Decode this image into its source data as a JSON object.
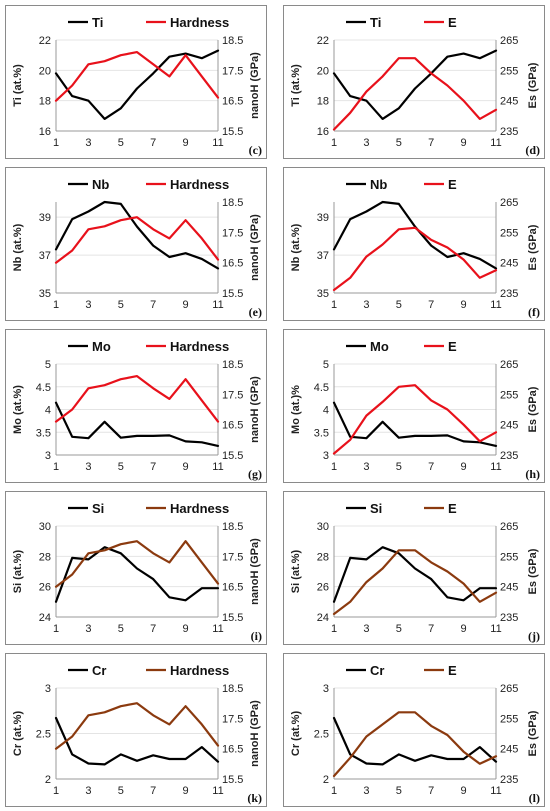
{
  "chart_data": [
    {
      "type": "line",
      "letter": "(c)",
      "xlabel": "",
      "ylabel": "Ti (at.%)",
      "y2label": "nanoH (GPa)",
      "x": [
        1,
        2,
        3,
        4,
        5,
        6,
        7,
        8,
        9,
        10,
        11
      ],
      "xticks": [
        "1",
        "3",
        "5",
        "7",
        "9",
        "11"
      ],
      "ylim": [
        16,
        22
      ],
      "yticks": [
        "16",
        "18",
        "20",
        "22"
      ],
      "y2lim": [
        15.5,
        18.5
      ],
      "y2ticks": [
        "15.5",
        "16.5",
        "17.5",
        "18.5"
      ],
      "series": [
        {
          "name": "Ti",
          "axis": "left",
          "color": "#000000",
          "values": [
            19.8,
            18.3,
            18.0,
            16.8,
            17.5,
            18.8,
            19.8,
            20.9,
            21.1,
            20.8,
            21.3
          ]
        },
        {
          "name": "Hardness",
          "axis": "right",
          "color": "#e8111b",
          "values": [
            16.5,
            17.0,
            17.7,
            17.8,
            18.0,
            18.1,
            17.7,
            17.3,
            18.0,
            17.3,
            16.6
          ]
        }
      ]
    },
    {
      "type": "line",
      "letter": "(d)",
      "xlabel": "",
      "ylabel": "Ti (at.%)",
      "y2label": "Es (GPa)",
      "x": [
        1,
        2,
        3,
        4,
        5,
        6,
        7,
        8,
        9,
        10,
        11
      ],
      "xticks": [
        "1",
        "3",
        "5",
        "7",
        "9",
        "11"
      ],
      "ylim": [
        16,
        22
      ],
      "yticks": [
        "16",
        "18",
        "20",
        "22"
      ],
      "y2lim": [
        235,
        265
      ],
      "y2ticks": [
        "235",
        "245",
        "255",
        "265"
      ],
      "series": [
        {
          "name": "Ti",
          "axis": "left",
          "color": "#000000",
          "values": [
            19.8,
            18.3,
            18.0,
            16.8,
            17.5,
            18.8,
            19.8,
            20.9,
            21.1,
            20.8,
            21.3
          ]
        },
        {
          "name": "E",
          "axis": "right",
          "color": "#e8111b",
          "values": [
            235.5,
            241,
            248,
            253,
            259,
            259,
            254,
            250,
            245,
            239,
            242
          ]
        }
      ]
    },
    {
      "type": "line",
      "letter": "(e)",
      "xlabel": "",
      "ylabel": "Nb (at.%)",
      "y2label": "nanoH (GPa)",
      "x": [
        1,
        2,
        3,
        4,
        5,
        6,
        7,
        8,
        9,
        10,
        11
      ],
      "xticks": [
        "1",
        "3",
        "5",
        "7",
        "9",
        "11"
      ],
      "ylim": [
        35,
        39.8
      ],
      "yticks": [
        "35",
        "37",
        "39"
      ],
      "y2lim": [
        15.5,
        18.5
      ],
      "y2ticks": [
        "15.5",
        "16.5",
        "17.5",
        "18.5"
      ],
      "series": [
        {
          "name": "Nb",
          "axis": "left",
          "color": "#000000",
          "values": [
            37.3,
            38.9,
            39.3,
            39.8,
            39.7,
            38.5,
            37.5,
            36.9,
            37.1,
            36.8,
            36.3
          ]
        },
        {
          "name": "Hardness",
          "axis": "right",
          "color": "#e8111b",
          "values": [
            16.5,
            16.9,
            17.6,
            17.7,
            17.9,
            18.0,
            17.6,
            17.3,
            17.9,
            17.3,
            16.6
          ]
        }
      ]
    },
    {
      "type": "line",
      "letter": "(f)",
      "xlabel": "",
      "ylabel": "Nb (at.%)",
      "y2label": "Es (GPa)",
      "x": [
        1,
        2,
        3,
        4,
        5,
        6,
        7,
        8,
        9,
        10,
        11
      ],
      "xticks": [
        "1",
        "3",
        "5",
        "7",
        "9",
        "11"
      ],
      "ylim": [
        35,
        39.8
      ],
      "yticks": [
        "35",
        "37",
        "39"
      ],
      "y2lim": [
        235,
        265
      ],
      "y2ticks": [
        "235",
        "245",
        "255",
        "265"
      ],
      "series": [
        {
          "name": "Nb",
          "axis": "left",
          "color": "#000000",
          "values": [
            37.3,
            38.9,
            39.3,
            39.8,
            39.7,
            38.5,
            37.5,
            36.9,
            37.1,
            36.8,
            36.3
          ]
        },
        {
          "name": "E",
          "axis": "right",
          "color": "#e8111b",
          "values": [
            236,
            240,
            247,
            251,
            256,
            256.5,
            252.5,
            250,
            246,
            240,
            242.5
          ]
        }
      ]
    },
    {
      "type": "line",
      "letter": "(g)",
      "xlabel": "",
      "ylabel": "Mo (at.%)",
      "y2label": "nanoH (GPa)",
      "x": [
        1,
        2,
        3,
        4,
        5,
        6,
        7,
        8,
        9,
        10,
        11
      ],
      "xticks": [
        "1",
        "3",
        "5",
        "7",
        "9",
        "11"
      ],
      "ylim": [
        3,
        5
      ],
      "yticks": [
        "3",
        "3.5",
        "4",
        "4.5",
        "5"
      ],
      "y2lim": [
        15.5,
        18.5
      ],
      "y2ticks": [
        "15.5",
        "16.5",
        "17.5",
        "18.5"
      ],
      "series": [
        {
          "name": "Mo",
          "axis": "left",
          "color": "#000000",
          "values": [
            4.15,
            3.4,
            3.37,
            3.73,
            3.38,
            3.42,
            3.42,
            3.43,
            3.3,
            3.28,
            3.2
          ]
        },
        {
          "name": "Hardness",
          "axis": "right",
          "color": "#e8111b",
          "values": [
            16.6,
            17.0,
            17.7,
            17.8,
            18.0,
            18.1,
            17.7,
            17.35,
            18.0,
            17.3,
            16.6
          ]
        }
      ]
    },
    {
      "type": "line",
      "letter": "(h)",
      "xlabel": "",
      "ylabel": "Mo (at.)%",
      "y2label": "Es (GPa)",
      "x": [
        1,
        2,
        3,
        4,
        5,
        6,
        7,
        8,
        9,
        10,
        11
      ],
      "xticks": [
        "1",
        "3",
        "5",
        "7",
        "9",
        "11"
      ],
      "ylim": [
        3,
        5
      ],
      "yticks": [
        "3",
        "3.5",
        "4",
        "4.5",
        "5"
      ],
      "y2lim": [
        235,
        265
      ],
      "y2ticks": [
        "235",
        "245",
        "255",
        "265"
      ],
      "series": [
        {
          "name": "Mo",
          "axis": "left",
          "color": "#000000",
          "values": [
            4.15,
            3.4,
            3.37,
            3.73,
            3.38,
            3.42,
            3.42,
            3.43,
            3.3,
            3.28,
            3.2
          ]
        },
        {
          "name": "E",
          "axis": "right",
          "color": "#e8111b",
          "values": [
            235.5,
            240,
            248,
            252.5,
            257.5,
            258,
            253,
            250,
            245,
            239.5,
            242.5
          ]
        }
      ]
    },
    {
      "type": "line",
      "letter": "(i)",
      "xlabel": "",
      "ylabel": "Si (at.%)",
      "y2label": "nanoH (GPa)",
      "x": [
        1,
        2,
        3,
        4,
        5,
        6,
        7,
        8,
        9,
        10,
        11
      ],
      "xticks": [
        "1",
        "3",
        "5",
        "7",
        "9",
        "11"
      ],
      "ylim": [
        24,
        30
      ],
      "yticks": [
        "24",
        "26",
        "28",
        "30"
      ],
      "y2lim": [
        15.5,
        18.5
      ],
      "y2ticks": [
        "15.5",
        "16.5",
        "17.5",
        "18.5"
      ],
      "series": [
        {
          "name": "Si",
          "axis": "left",
          "color": "#000000",
          "values": [
            25,
            27.9,
            27.8,
            28.6,
            28.2,
            27.2,
            26.5,
            25.3,
            25.1,
            25.9,
            25.9
          ]
        },
        {
          "name": "Hardness",
          "axis": "right",
          "color": "#8b3a0f",
          "values": [
            16.5,
            16.9,
            17.6,
            17.7,
            17.9,
            18.0,
            17.6,
            17.3,
            18.0,
            17.3,
            16.6
          ]
        }
      ]
    },
    {
      "type": "line",
      "letter": "(j)",
      "xlabel": "",
      "ylabel": "Si (at.%)",
      "y2label": "Es (GPa)",
      "x": [
        1,
        2,
        3,
        4,
        5,
        6,
        7,
        8,
        9,
        10,
        11
      ],
      "xticks": [
        "1",
        "3",
        "5",
        "7",
        "9",
        "11"
      ],
      "ylim": [
        24,
        30
      ],
      "yticks": [
        "24",
        "26",
        "28",
        "30"
      ],
      "y2lim": [
        235,
        265
      ],
      "y2ticks": [
        "235",
        "245",
        "255",
        "265"
      ],
      "series": [
        {
          "name": "Si",
          "axis": "left",
          "color": "#000000",
          "values": [
            25,
            27.9,
            27.8,
            28.6,
            28.2,
            27.2,
            26.5,
            25.3,
            25.1,
            25.9,
            25.9
          ]
        },
        {
          "name": "E",
          "axis": "right",
          "color": "#8b3a0f",
          "values": [
            236,
            240,
            246.5,
            251,
            257,
            257,
            253,
            250,
            246,
            240,
            243
          ]
        }
      ]
    },
    {
      "type": "line",
      "letter": "(k)",
      "xlabel": "",
      "ylabel": "Cr (at.%)",
      "y2label": "nanoH (GPa)",
      "x": [
        1,
        2,
        3,
        4,
        5,
        6,
        7,
        8,
        9,
        10,
        11
      ],
      "xticks": [
        "1",
        "3",
        "5",
        "7",
        "9",
        "11"
      ],
      "ylim": [
        2,
        3
      ],
      "yticks": [
        "2",
        "2.5",
        "3"
      ],
      "y2lim": [
        15.5,
        18.5
      ],
      "y2ticks": [
        "15.5",
        "16.5",
        "17.5",
        "18.5"
      ],
      "series": [
        {
          "name": "Cr",
          "axis": "left",
          "color": "#000000",
          "values": [
            2.67,
            2.27,
            2.17,
            2.16,
            2.27,
            2.2,
            2.26,
            2.22,
            2.22,
            2.35,
            2.19
          ]
        },
        {
          "name": "Hardness",
          "axis": "right",
          "color": "#8b3a0f",
          "values": [
            16.5,
            16.9,
            17.6,
            17.7,
            17.9,
            18.0,
            17.6,
            17.3,
            17.9,
            17.3,
            16.6
          ]
        }
      ]
    },
    {
      "type": "line",
      "letter": "(l)",
      "xlabel": "",
      "ylabel": "Cr (at.%)",
      "y2label": "Es (GPa)",
      "x": [
        1,
        2,
        3,
        4,
        5,
        6,
        7,
        8,
        9,
        10,
        11
      ],
      "xticks": [
        "1",
        "3",
        "5",
        "7",
        "9",
        "11"
      ],
      "ylim": [
        2,
        3
      ],
      "yticks": [
        "2",
        "2.5",
        "3"
      ],
      "y2lim": [
        235,
        265
      ],
      "y2ticks": [
        "235",
        "245",
        "255",
        "265"
      ],
      "series": [
        {
          "name": "Cr",
          "axis": "left",
          "color": "#000000",
          "values": [
            2.67,
            2.27,
            2.17,
            2.16,
            2.27,
            2.2,
            2.26,
            2.22,
            2.22,
            2.35,
            2.19
          ]
        },
        {
          "name": "E",
          "axis": "right",
          "color": "#8b3a0f",
          "values": [
            236,
            242,
            249,
            253,
            257,
            257,
            252.5,
            249.5,
            244,
            240,
            242.5
          ]
        }
      ]
    }
  ]
}
